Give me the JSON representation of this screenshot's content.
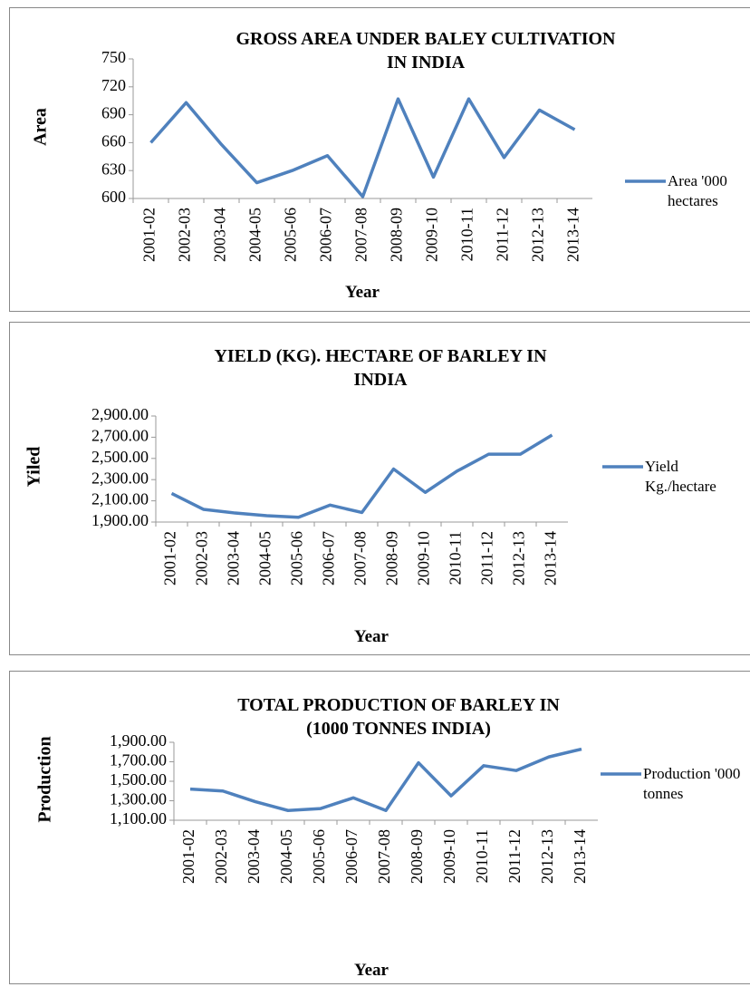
{
  "chart_data": [
    {
      "type": "line",
      "title": "GROSS AREA UNDER BALEY CULTIVATION IN INDIA",
      "x_label": "Year",
      "y_label": "Area",
      "categories": [
        "2001-02",
        "2002-03",
        "2003-04",
        "2004-05",
        "2005-06",
        "2006-07",
        "2007-08",
        "2008-09",
        "2009-10",
        "2010-11",
        "2011-12",
        "2012-13",
        "2013-14"
      ],
      "series": [
        {
          "name": "Area  '000 hectares",
          "color": "#4f81bd",
          "values": [
            660,
            703,
            658,
            617,
            630,
            646,
            602,
            707,
            623,
            707,
            644,
            695,
            674
          ]
        }
      ],
      "ylim": [
        600,
        750
      ],
      "yticks": [
        600,
        630,
        660,
        690,
        720,
        750
      ],
      "legend": "right"
    },
    {
      "type": "line",
      "title": "YIELD  (KG). HECTARE OF BARLEY IN INDIA",
      "x_label": "Year",
      "y_label": "Yiled",
      "categories": [
        "2001-02",
        "2002-03",
        "2003-04",
        "2004-05",
        "2005-06",
        "2006-07",
        "2007-08",
        "2008-09",
        "2009-10",
        "2010-11",
        "2011-12",
        "2012-13",
        "2013-14"
      ],
      "series": [
        {
          "name": "Yield Kg./hectare",
          "color": "#4f81bd",
          "values": [
            2170,
            2020,
            1985,
            1960,
            1945,
            2060,
            1990,
            2400,
            2180,
            2380,
            2540,
            2540,
            2720
          ]
        }
      ],
      "ylim": [
        1900,
        2900
      ],
      "yticks": [
        {
          "value": 1900,
          "label": "1,900.00"
        },
        {
          "value": 2100,
          "label": "2,100.00"
        },
        {
          "value": 2300,
          "label": "2,300.00"
        },
        {
          "value": 2500,
          "label": "2,500.00"
        },
        {
          "value": 2700,
          "label": "2,700.00"
        },
        {
          "value": 2900,
          "label": "2,900.00"
        }
      ],
      "legend": "right"
    },
    {
      "type": "line",
      "title": "TOTAL PRODUCTION OF BARLEY IN (1000 TONNES INDIA)",
      "x_label": "Year",
      "y_label": "Production",
      "categories": [
        "2001-02",
        "2002-03",
        "2003-04",
        "2004-05",
        "2005-06",
        "2006-07",
        "2007-08",
        "2008-09",
        "2009-10",
        "2010-11",
        "2011-12",
        "2012-13",
        "2013-14"
      ],
      "series": [
        {
          "name": "Production '000 tonnes",
          "color": "#4f81bd",
          "values": [
            1420,
            1400,
            1290,
            1200,
            1220,
            1330,
            1200,
            1690,
            1350,
            1660,
            1610,
            1750,
            1830
          ]
        }
      ],
      "ylim": [
        1100,
        1900
      ],
      "yticks": [
        {
          "value": 1100,
          "label": "1,100.00"
        },
        {
          "value": 1300,
          "label": "1,300.00"
        },
        {
          "value": 1500,
          "label": "1,500.00"
        },
        {
          "value": 1700,
          "label": "1,700.00"
        },
        {
          "value": 1900,
          "label": "1,900.00"
        }
      ],
      "legend": "right"
    }
  ]
}
